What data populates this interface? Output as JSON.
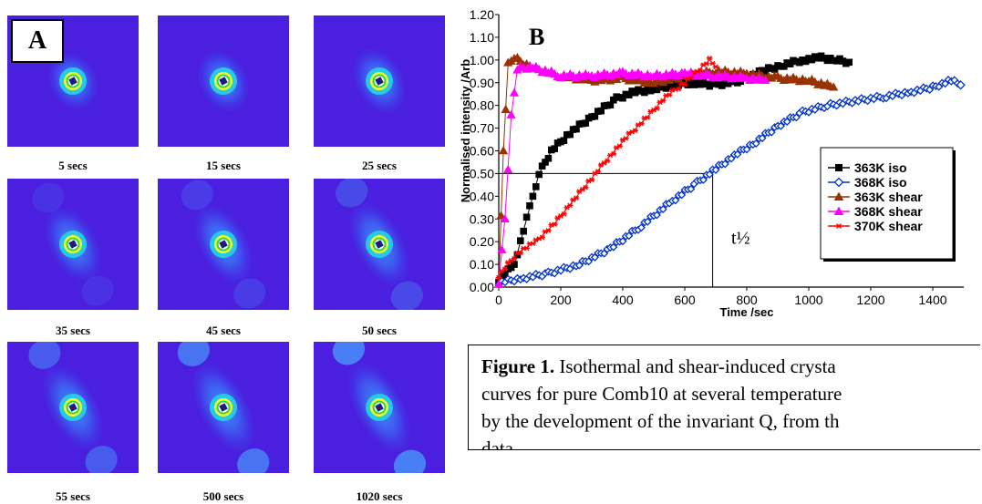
{
  "panel_a": {
    "label": "A",
    "frames": [
      {
        "caption": "5 secs",
        "elong": 1.25,
        "lobes": 0.0
      },
      {
        "caption": "15 secs",
        "elong": 1.35,
        "lobes": 0.0
      },
      {
        "caption": "25 secs",
        "elong": 1.45,
        "lobes": 0.0
      },
      {
        "caption": "35 secs",
        "elong": 1.7,
        "lobes": 0.15
      },
      {
        "caption": "45 secs",
        "elong": 1.8,
        "lobes": 0.25
      },
      {
        "caption": "50 secs",
        "elong": 1.9,
        "lobes": 0.35
      },
      {
        "caption": "55 secs",
        "elong": 1.95,
        "lobes": 0.5
      },
      {
        "caption": "500 secs",
        "elong": 2.05,
        "lobes": 0.7
      },
      {
        "caption": "1020 secs",
        "elong": 2.1,
        "lobes": 0.8
      }
    ]
  },
  "panel_b": {
    "label": "B",
    "annotation": "t½"
  },
  "figure_caption": {
    "bold": "Figure 1.",
    "lines": [
      " Isothermal and shear-induced crysta",
      "curves for pure Comb10 at several temperature",
      "by the development of the invariant Q, from th",
      "data."
    ]
  },
  "chart_data": {
    "type": "scatter",
    "xlabel": "Time /sec",
    "ylabel": "Normalised intensity /Arb",
    "xlim": [
      0,
      1500
    ],
    "ylim": [
      0.0,
      1.2
    ],
    "xticks": [
      "0",
      "200",
      "400",
      "600",
      "800",
      "1000",
      "1200",
      "1400"
    ],
    "yticks": [
      "0.00",
      "0.10",
      "0.20",
      "0.30",
      "0.40",
      "0.50",
      "0.60",
      "0.70",
      "0.80",
      "0.90",
      "1.00",
      "1.10",
      "1.20"
    ],
    "legend_position": "right",
    "half_time_guide": {
      "y": 0.5,
      "x": 690
    },
    "series": [
      {
        "name": "363K iso",
        "color": "#000000",
        "marker": "square",
        "points": [
          [
            0,
            0.03
          ],
          [
            50,
            0.1
          ],
          [
            100,
            0.35
          ],
          [
            130,
            0.5
          ],
          [
            170,
            0.6
          ],
          [
            230,
            0.68
          ],
          [
            300,
            0.75
          ],
          [
            380,
            0.83
          ],
          [
            440,
            0.86
          ],
          [
            500,
            0.87
          ],
          [
            560,
            0.89
          ],
          [
            620,
            0.9
          ],
          [
            700,
            0.89
          ],
          [
            780,
            0.91
          ],
          [
            850,
            0.95
          ],
          [
            920,
            0.98
          ],
          [
            980,
            1.0
          ],
          [
            1040,
            1.01
          ],
          [
            1090,
            1.0
          ],
          [
            1130,
            0.99
          ]
        ]
      },
      {
        "name": "368K iso",
        "color": "#0033cc",
        "marker": "diamond",
        "points": [
          [
            0,
            0.02
          ],
          [
            80,
            0.04
          ],
          [
            160,
            0.06
          ],
          [
            260,
            0.1
          ],
          [
            360,
            0.17
          ],
          [
            460,
            0.27
          ],
          [
            560,
            0.38
          ],
          [
            640,
            0.46
          ],
          [
            700,
            0.52
          ],
          [
            760,
            0.58
          ],
          [
            830,
            0.64
          ],
          [
            900,
            0.71
          ],
          [
            980,
            0.77
          ],
          [
            1060,
            0.8
          ],
          [
            1150,
            0.82
          ],
          [
            1250,
            0.84
          ],
          [
            1330,
            0.86
          ],
          [
            1400,
            0.88
          ],
          [
            1460,
            0.91
          ],
          [
            1490,
            0.89
          ]
        ]
      },
      {
        "name": "363K shear",
        "color": "#993300",
        "marker": "triangle",
        "points": [
          [
            0,
            0.02
          ],
          [
            15,
            0.6
          ],
          [
            30,
            0.98
          ],
          [
            50,
            1.01
          ],
          [
            100,
            0.97
          ],
          [
            200,
            0.93
          ],
          [
            300,
            0.91
          ],
          [
            400,
            0.92
          ],
          [
            500,
            0.9
          ],
          [
            600,
            0.93
          ],
          [
            700,
            0.95
          ],
          [
            800,
            0.94
          ],
          [
            900,
            0.92
          ],
          [
            1000,
            0.91
          ],
          [
            1080,
            0.88
          ]
        ]
      },
      {
        "name": "368K shear",
        "color": "#ff00ff",
        "marker": "triangle",
        "points": [
          [
            0,
            0.02
          ],
          [
            20,
            0.3
          ],
          [
            40,
            0.75
          ],
          [
            60,
            0.96
          ],
          [
            100,
            0.97
          ],
          [
            200,
            0.93
          ],
          [
            300,
            0.93
          ],
          [
            400,
            0.94
          ],
          [
            500,
            0.93
          ],
          [
            600,
            0.94
          ],
          [
            700,
            0.93
          ],
          [
            800,
            0.92
          ],
          [
            860,
            0.91
          ]
        ]
      },
      {
        "name": "370K shear",
        "color": "#ff0000",
        "marker": "star",
        "points": [
          [
            0,
            0.05
          ],
          [
            60,
            0.15
          ],
          [
            120,
            0.2
          ],
          [
            180,
            0.28
          ],
          [
            240,
            0.38
          ],
          [
            300,
            0.48
          ],
          [
            360,
            0.58
          ],
          [
            420,
            0.67
          ],
          [
            480,
            0.75
          ],
          [
            540,
            0.84
          ],
          [
            600,
            0.9
          ],
          [
            640,
            0.95
          ],
          [
            680,
            1.0
          ],
          [
            700,
            0.97
          ]
        ]
      }
    ]
  }
}
